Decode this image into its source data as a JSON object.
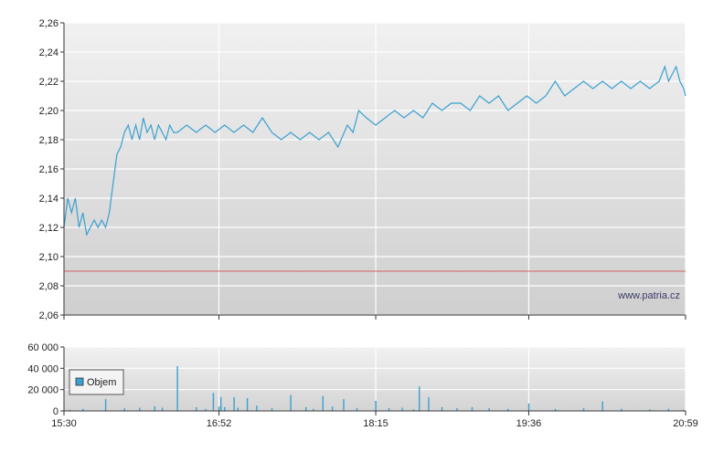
{
  "chart_data": [
    {
      "type": "line",
      "title": "",
      "xlabel": "",
      "ylabel": "",
      "ylim": [
        2.06,
        2.26
      ],
      "y_ticks": [
        "2,26",
        "2,24",
        "2,22",
        "2,20",
        "2,18",
        "2,16",
        "2,14",
        "2,12",
        "2,10",
        "2,08",
        "2,06"
      ],
      "x_ticks": [
        "15:30",
        "16:52",
        "18:15",
        "19:36",
        "20:59"
      ],
      "xlim_minutes": [
        930,
        1259
      ],
      "grid": true,
      "reference_line": 2.09,
      "watermark": "www.patria.cz",
      "series": [
        {
          "color": "#3aa0d0",
          "x": [
            "15:30",
            "15:32",
            "15:34",
            "15:36",
            "15:38",
            "15:40",
            "15:42",
            "15:44",
            "15:46",
            "15:48",
            "15:50",
            "15:52",
            "15:54",
            "15:56",
            "15:58",
            "16:00",
            "16:02",
            "16:04",
            "16:06",
            "16:08",
            "16:10",
            "16:12",
            "16:14",
            "16:16",
            "16:18",
            "16:20",
            "16:22",
            "16:24",
            "16:26",
            "16:28",
            "16:30",
            "16:35",
            "16:40",
            "16:45",
            "16:50",
            "16:55",
            "17:00",
            "17:05",
            "17:10",
            "17:15",
            "17:20",
            "17:25",
            "17:30",
            "17:35",
            "17:40",
            "17:45",
            "17:50",
            "17:55",
            "18:00",
            "18:03",
            "18:06",
            "18:10",
            "18:15",
            "18:20",
            "18:25",
            "18:30",
            "18:35",
            "18:40",
            "18:45",
            "18:50",
            "18:55",
            "19:00",
            "19:05",
            "19:10",
            "19:15",
            "19:20",
            "19:25",
            "19:30",
            "19:35",
            "19:40",
            "19:45",
            "19:50",
            "19:55",
            "20:00",
            "20:05",
            "20:10",
            "20:15",
            "20:20",
            "20:25",
            "20:30",
            "20:35",
            "20:40",
            "20:45",
            "20:48",
            "20:50",
            "20:52",
            "20:54",
            "20:56",
            "20:58",
            "20:59"
          ],
          "y": [
            2.12,
            2.14,
            2.13,
            2.14,
            2.12,
            2.13,
            2.115,
            2.12,
            2.125,
            2.12,
            2.125,
            2.12,
            2.13,
            2.15,
            2.17,
            2.175,
            2.185,
            2.19,
            2.18,
            2.19,
            2.18,
            2.195,
            2.185,
            2.19,
            2.18,
            2.19,
            2.185,
            2.18,
            2.19,
            2.185,
            2.185,
            2.19,
            2.185,
            2.19,
            2.185,
            2.19,
            2.185,
            2.19,
            2.185,
            2.195,
            2.185,
            2.18,
            2.185,
            2.18,
            2.185,
            2.18,
            2.185,
            2.175,
            2.19,
            2.185,
            2.2,
            2.195,
            2.19,
            2.195,
            2.2,
            2.195,
            2.2,
            2.195,
            2.205,
            2.2,
            2.205,
            2.205,
            2.2,
            2.21,
            2.205,
            2.21,
            2.2,
            2.205,
            2.21,
            2.205,
            2.21,
            2.22,
            2.21,
            2.215,
            2.22,
            2.215,
            2.22,
            2.215,
            2.22,
            2.215,
            2.22,
            2.215,
            2.22,
            2.23,
            2.22,
            2.225,
            2.23,
            2.22,
            2.215,
            2.21
          ]
        }
      ]
    },
    {
      "type": "bar",
      "title": "",
      "xlabel": "",
      "ylabel": "",
      "ylim": [
        0,
        60000
      ],
      "y_ticks": [
        "60 000",
        "40 000",
        "20 000",
        "0"
      ],
      "x_ticks": [
        "15:30",
        "16:52",
        "18:15",
        "19:36",
        "20:59"
      ],
      "xlim_minutes": [
        930,
        1259
      ],
      "grid": true,
      "legend": {
        "label": "Objem",
        "position": "left"
      },
      "series": [
        {
          "name": "Objem",
          "color": "#3aa0d0",
          "x": [
            "15:33",
            "15:40",
            "15:52",
            "16:02",
            "16:10",
            "16:18",
            "16:22",
            "16:30",
            "16:40",
            "16:45",
            "16:49",
            "16:52",
            "16:53",
            "16:55",
            "17:00",
            "17:02",
            "17:07",
            "17:12",
            "17:20",
            "17:30",
            "17:38",
            "17:42",
            "17:47",
            "17:52",
            "17:58",
            "18:05",
            "18:15",
            "18:22",
            "18:29",
            "18:35",
            "18:38",
            "18:43",
            "18:50",
            "18:58",
            "19:06",
            "19:15",
            "19:25",
            "19:36",
            "19:50",
            "20:05",
            "20:15",
            "20:25",
            "20:40",
            "20:50",
            "20:58"
          ],
          "values": [
            1000,
            2000,
            11000,
            2500,
            3000,
            4500,
            3000,
            42000,
            3500,
            2000,
            17000,
            4000,
            13000,
            3500,
            13000,
            3000,
            12000,
            5000,
            2500,
            15000,
            3500,
            2000,
            14000,
            4000,
            11000,
            2500,
            9500,
            2500,
            3000,
            1500,
            23000,
            13000,
            3500,
            2500,
            3500,
            2500,
            2000,
            7000,
            2000,
            2500,
            9000,
            2000,
            1500,
            2000,
            1000
          ]
        }
      ]
    }
  ]
}
